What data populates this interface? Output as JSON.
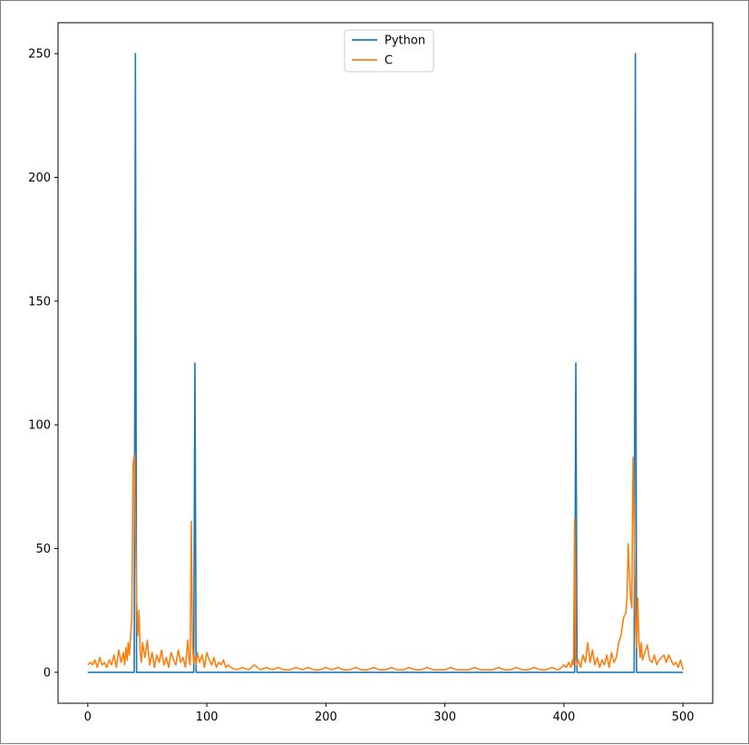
{
  "chart_data": {
    "type": "line",
    "title": "",
    "xlabel": "",
    "ylabel": "",
    "xlim": [
      -25,
      525
    ],
    "ylim": [
      -12.5,
      262.5
    ],
    "xticks": [
      0,
      100,
      200,
      300,
      400,
      500
    ],
    "yticks": [
      0,
      50,
      100,
      150,
      200,
      250
    ],
    "xtick_labels": [
      "0",
      "100",
      "200",
      "300",
      "400",
      "500"
    ],
    "ytick_labels": [
      "0",
      "50",
      "100",
      "150",
      "200",
      "250"
    ],
    "grid": false,
    "legend_position": "upper-center",
    "series": [
      {
        "name": "Python",
        "color": "#1f77b4",
        "x": [
          0,
          39,
          40,
          41,
          89,
          90,
          91,
          409,
          410,
          411,
          459,
          460,
          461,
          500
        ],
        "y": [
          0,
          0,
          250,
          0,
          0,
          125,
          0,
          0,
          125,
          0,
          0,
          250,
          0,
          0
        ]
      },
      {
        "name": "C",
        "color": "#ff7f0e",
        "x": [
          0,
          2,
          4,
          6,
          8,
          10,
          12,
          14,
          16,
          18,
          20,
          22,
          24,
          26,
          28,
          30,
          31,
          32,
          33,
          34,
          35,
          36,
          37,
          38,
          39,
          40,
          41,
          42,
          43,
          44,
          45,
          46,
          48,
          50,
          52,
          54,
          56,
          58,
          60,
          62,
          64,
          66,
          68,
          70,
          72,
          74,
          76,
          78,
          80,
          82,
          84,
          85,
          86,
          87,
          88,
          89,
          90,
          91,
          92,
          94,
          96,
          98,
          100,
          102,
          104,
          106,
          108,
          110,
          112,
          114,
          116,
          118,
          120,
          125,
          130,
          135,
          140,
          145,
          150,
          155,
          160,
          165,
          170,
          175,
          180,
          185,
          190,
          195,
          200,
          205,
          210,
          215,
          220,
          225,
          230,
          235,
          240,
          245,
          250,
          255,
          260,
          265,
          270,
          275,
          280,
          285,
          290,
          295,
          300,
          305,
          310,
          315,
          320,
          325,
          330,
          335,
          340,
          345,
          350,
          355,
          360,
          365,
          370,
          375,
          380,
          385,
          390,
          395,
          398,
          400,
          402,
          404,
          406,
          407,
          408,
          409,
          410,
          411,
          412,
          414,
          416,
          418,
          420,
          422,
          424,
          426,
          428,
          430,
          432,
          434,
          436,
          438,
          440,
          442,
          444,
          446,
          448,
          450,
          452,
          453,
          454,
          455,
          456,
          457,
          458,
          459,
          460,
          461,
          462,
          463,
          464,
          465,
          466,
          468,
          470,
          472,
          474,
          476,
          478,
          480,
          482,
          484,
          486,
          488,
          490,
          492,
          494,
          496,
          498,
          500
        ],
        "y": [
          3,
          4,
          3,
          5,
          2,
          6,
          3,
          4,
          2,
          5,
          3,
          7,
          2,
          9,
          4,
          8,
          3,
          10,
          5,
          12,
          7,
          15,
          22,
          84,
          88,
          60,
          30,
          15,
          25,
          8,
          4,
          12,
          6,
          13,
          3,
          8,
          2,
          7,
          4,
          9,
          3,
          6,
          2,
          8,
          5,
          3,
          9,
          4,
          6,
          2,
          13,
          5,
          3,
          61,
          10,
          4,
          6,
          3,
          8,
          4,
          7,
          2,
          8,
          5,
          3,
          6,
          2,
          4,
          3,
          5,
          2,
          3,
          2,
          1,
          2,
          1,
          3,
          1,
          2,
          1,
          2,
          1,
          1,
          2,
          1,
          2,
          1,
          1,
          2,
          1,
          2,
          1,
          1,
          2,
          1,
          1,
          2,
          1,
          1,
          2,
          1,
          1,
          2,
          1,
          1,
          2,
          1,
          1,
          1,
          2,
          1,
          1,
          1,
          2,
          1,
          1,
          1,
          2,
          1,
          1,
          2,
          1,
          1,
          2,
          1,
          1,
          2,
          1,
          2,
          3,
          2,
          4,
          2,
          5,
          3,
          62,
          6,
          3,
          5,
          2,
          7,
          4,
          12,
          4,
          9,
          3,
          6,
          2,
          5,
          3,
          7,
          2,
          8,
          4,
          6,
          12,
          15,
          22,
          24,
          30,
          52,
          40,
          30,
          26,
          87,
          60,
          22,
          10,
          30,
          12,
          6,
          12,
          5,
          8,
          11,
          5,
          4,
          7,
          3,
          5,
          6,
          7,
          4,
          7,
          5,
          3,
          4,
          2,
          5,
          1
        ]
      }
    ]
  }
}
